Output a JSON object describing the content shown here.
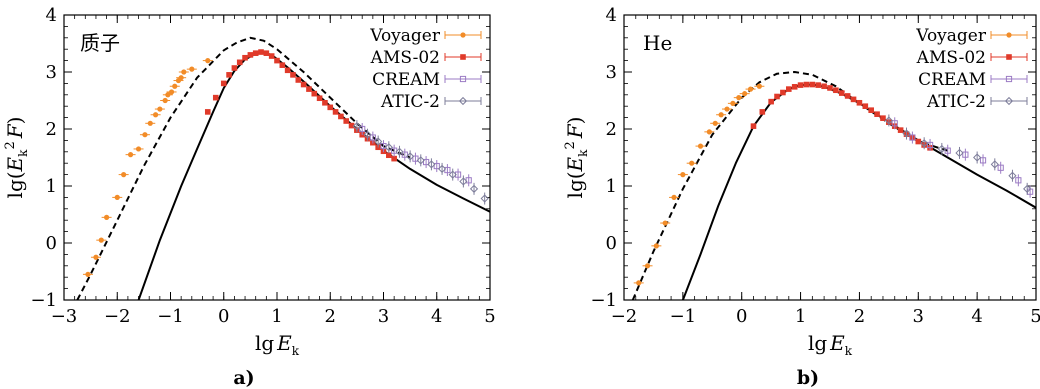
{
  "chart_data": [
    {
      "type": "line",
      "panel_label": "a)",
      "annotation": "质子",
      "xlabel": "lg E_k",
      "ylabel": "lg(E_k^2 F)",
      "xlim": [
        -3,
        5
      ],
      "ylim": [
        -1,
        4
      ],
      "xticks": [
        -3,
        -2,
        -1,
        0,
        1,
        2,
        3,
        4,
        5
      ],
      "yticks": [
        -1,
        0,
        1,
        2,
        3,
        4
      ],
      "legend_position": "top-right",
      "series": [
        {
          "name": "Voyager",
          "marker": "circle",
          "color": "#f28c28",
          "x": [
            -2.55,
            -2.4,
            -2.3,
            -2.2,
            -2.0,
            -1.88,
            -1.75,
            -1.6,
            -1.48,
            -1.38,
            -1.28,
            -1.2,
            -1.1,
            -1.05,
            -0.98,
            -0.92,
            -0.85,
            -0.8,
            -0.75,
            -0.6,
            -0.3
          ],
          "y": [
            -0.55,
            -0.25,
            0.05,
            0.45,
            0.8,
            1.2,
            1.55,
            1.65,
            1.9,
            2.1,
            2.25,
            2.35,
            2.5,
            2.6,
            2.65,
            2.75,
            2.85,
            2.9,
            3.0,
            3.05,
            3.2
          ]
        },
        {
          "name": "AMS-02",
          "marker": "square",
          "color": "#e03a2a",
          "x": [
            -0.3,
            -0.15,
            0.0,
            0.1,
            0.2,
            0.3,
            0.4,
            0.5,
            0.6,
            0.7,
            0.8,
            0.9,
            1.0,
            1.1,
            1.2,
            1.3,
            1.4,
            1.5,
            1.6,
            1.7,
            1.8,
            1.9,
            2.0,
            2.1,
            2.2,
            2.3,
            2.4,
            2.5,
            2.6,
            2.7,
            2.8,
            2.9,
            3.0,
            3.1,
            3.2
          ],
          "y": [
            2.3,
            2.55,
            2.8,
            2.95,
            3.07,
            3.17,
            3.25,
            3.3,
            3.33,
            3.35,
            3.33,
            3.28,
            3.2,
            3.12,
            3.03,
            2.95,
            2.86,
            2.78,
            2.7,
            2.62,
            2.54,
            2.46,
            2.38,
            2.3,
            2.22,
            2.14,
            2.06,
            1.98,
            1.9,
            1.83,
            1.76,
            1.68,
            1.61,
            1.54,
            1.48
          ]
        },
        {
          "name": "CREAM",
          "marker": "open-square",
          "color": "#9b7bc4",
          "x": [
            2.6,
            2.8,
            3.0,
            3.2,
            3.4,
            3.6,
            3.8,
            4.0,
            4.2,
            4.4,
            4.6
          ],
          "y": [
            2.0,
            1.85,
            1.7,
            1.62,
            1.55,
            1.48,
            1.42,
            1.35,
            1.28,
            1.2,
            1.1
          ]
        },
        {
          "name": "ATIC-2",
          "marker": "open-diamond",
          "color": "#7d7d9a",
          "x": [
            2.5,
            2.7,
            2.9,
            3.1,
            3.3,
            3.5,
            3.7,
            3.9,
            4.1,
            4.3,
            4.5,
            4.7,
            4.9
          ],
          "y": [
            2.05,
            1.9,
            1.78,
            1.68,
            1.6,
            1.52,
            1.45,
            1.38,
            1.3,
            1.2,
            1.08,
            0.95,
            0.78
          ]
        },
        {
          "name": "",
          "style": "dashed",
          "color": "#000000",
          "x": [
            -2.75,
            -2.5,
            -2.0,
            -1.5,
            -1.0,
            -0.5,
            0.0,
            0.25,
            0.5,
            0.75,
            1.0,
            1.5,
            2.0,
            2.5,
            3.0,
            3.5
          ],
          "y": [
            -1.0,
            -0.55,
            0.4,
            1.35,
            2.2,
            2.9,
            3.38,
            3.52,
            3.6,
            3.55,
            3.4,
            3.0,
            2.55,
            2.1,
            1.7,
            1.5
          ]
        },
        {
          "name": "",
          "style": "solid",
          "color": "#000000",
          "x": [
            -1.6,
            -1.2,
            -0.8,
            -0.5,
            -0.2,
            0.0,
            0.2,
            0.4,
            0.6,
            0.75,
            0.9,
            1.2,
            1.6,
            2.0,
            2.5,
            3.0,
            3.5,
            4.0,
            4.5,
            5.0
          ],
          "y": [
            -1.0,
            0.05,
            1.0,
            1.65,
            2.3,
            2.72,
            3.02,
            3.22,
            3.32,
            3.34,
            3.3,
            3.08,
            2.75,
            2.4,
            2.0,
            1.62,
            1.3,
            1.02,
            0.78,
            0.55
          ]
        }
      ]
    },
    {
      "type": "line",
      "panel_label": "b)",
      "annotation": "He",
      "xlabel": "lg E_k",
      "ylabel": "lg(E_k^2 F)",
      "xlim": [
        -2,
        5
      ],
      "ylim": [
        -1,
        4
      ],
      "xticks": [
        -2,
        -1,
        0,
        1,
        2,
        3,
        4,
        5
      ],
      "yticks": [
        -1,
        0,
        1,
        2,
        3,
        4
      ],
      "legend_position": "top-right",
      "series": [
        {
          "name": "Voyager",
          "marker": "circle",
          "color": "#f28c28",
          "x": [
            -1.75,
            -1.6,
            -1.45,
            -1.3,
            -1.15,
            -1.0,
            -0.85,
            -0.7,
            -0.55,
            -0.45,
            -0.35,
            -0.25,
            -0.15,
            -0.05,
            0.05,
            0.15,
            0.3
          ],
          "y": [
            -0.7,
            -0.4,
            -0.05,
            0.35,
            0.8,
            1.2,
            1.4,
            1.7,
            1.95,
            2.1,
            2.25,
            2.35,
            2.45,
            2.55,
            2.62,
            2.7,
            2.75
          ]
        },
        {
          "name": "AMS-02",
          "marker": "square",
          "color": "#e03a2a",
          "x": [
            0.2,
            0.35,
            0.5,
            0.6,
            0.7,
            0.8,
            0.9,
            1.0,
            1.1,
            1.2,
            1.3,
            1.4,
            1.5,
            1.6,
            1.7,
            1.8,
            1.9,
            2.0,
            2.1,
            2.2,
            2.3,
            2.4,
            2.5,
            2.6,
            2.7,
            2.8,
            2.9,
            3.0,
            3.1,
            3.2
          ],
          "y": [
            2.05,
            2.3,
            2.48,
            2.57,
            2.64,
            2.7,
            2.74,
            2.77,
            2.78,
            2.78,
            2.77,
            2.75,
            2.72,
            2.68,
            2.63,
            2.58,
            2.52,
            2.46,
            2.4,
            2.33,
            2.26,
            2.19,
            2.12,
            2.05,
            1.98,
            1.91,
            1.85,
            1.78,
            1.72,
            1.67
          ]
        },
        {
          "name": "CREAM",
          "marker": "open-square",
          "color": "#9b7bc4",
          "x": [
            2.6,
            2.9,
            3.2,
            3.5,
            3.8,
            4.1,
            4.4,
            4.7,
            4.9
          ],
          "y": [
            2.1,
            1.85,
            1.72,
            1.62,
            1.55,
            1.45,
            1.32,
            1.1,
            0.9
          ]
        },
        {
          "name": "ATIC-2",
          "marker": "open-diamond",
          "color": "#7d7d9a",
          "x": [
            2.5,
            2.8,
            3.1,
            3.4,
            3.7,
            4.0,
            4.3,
            4.6,
            4.85
          ],
          "y": [
            2.15,
            1.92,
            1.75,
            1.65,
            1.58,
            1.5,
            1.38,
            1.18,
            0.95
          ]
        },
        {
          "name": "",
          "style": "dashed",
          "color": "#000000",
          "x": [
            -1.85,
            -1.5,
            -1.0,
            -0.5,
            0.0,
            0.3,
            0.6,
            0.9,
            1.2,
            1.6,
            2.0,
            2.5,
            3.0,
            3.5
          ],
          "y": [
            -1.0,
            -0.15,
            0.95,
            1.9,
            2.55,
            2.82,
            2.97,
            3.0,
            2.95,
            2.75,
            2.45,
            2.1,
            1.78,
            1.62
          ]
        },
        {
          "name": "",
          "style": "solid",
          "color": "#000000",
          "x": [
            -1.0,
            -0.7,
            -0.4,
            -0.1,
            0.2,
            0.5,
            0.8,
            1.0,
            1.2,
            1.4,
            1.7,
            2.0,
            2.5,
            3.0,
            3.5,
            4.0,
            4.5,
            5.0
          ],
          "y": [
            -1.0,
            -0.2,
            0.65,
            1.4,
            2.05,
            2.47,
            2.7,
            2.77,
            2.78,
            2.74,
            2.62,
            2.45,
            2.12,
            1.8,
            1.5,
            1.2,
            0.92,
            0.62
          ]
        }
      ]
    }
  ]
}
